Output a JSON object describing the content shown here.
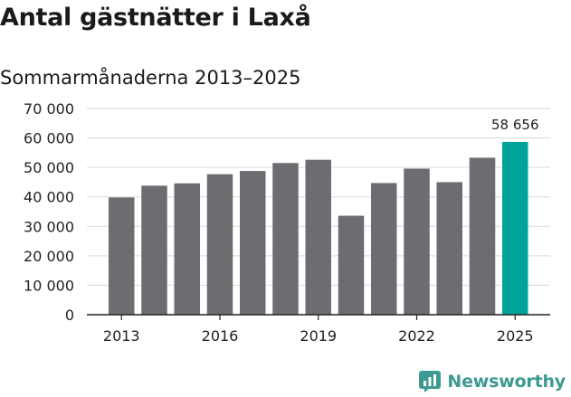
{
  "header": {
    "title": "Antal gästnätter i Laxå",
    "subtitle": "Sommarmånaderna 2013–2025"
  },
  "colors": {
    "bar": "#6d6c71",
    "highlight": "#00a398",
    "brand": "#3c9a92",
    "grid": "#d9d9d9",
    "axis": "#222222"
  },
  "brand": {
    "name": "Newsworthy",
    "icon": "bar-chart-logo-icon"
  },
  "chart_data": {
    "type": "bar",
    "categories": [
      "2013",
      "2014",
      "2015",
      "2016",
      "2017",
      "2018",
      "2019",
      "2020",
      "2021",
      "2022",
      "2023",
      "2024",
      "2025"
    ],
    "values": [
      39800,
      43800,
      44600,
      47700,
      48800,
      51500,
      52600,
      33600,
      44700,
      49600,
      45000,
      53300,
      58656
    ],
    "highlight_index": 12,
    "value_labels": [
      {
        "index": 12,
        "text": "58 656"
      }
    ],
    "x_tick_labels": [
      "2013",
      "2016",
      "2019",
      "2022",
      "2025"
    ],
    "y_ticks": [
      0,
      10000,
      20000,
      30000,
      40000,
      50000,
      60000,
      70000
    ],
    "y_tick_labels": [
      "0",
      "10 000",
      "20 000",
      "30 000",
      "40 000",
      "50 000",
      "60 000",
      "70 000"
    ],
    "ylim": [
      0,
      70000
    ],
    "grid": true,
    "legend": "none",
    "xlabel": "",
    "ylabel": ""
  }
}
